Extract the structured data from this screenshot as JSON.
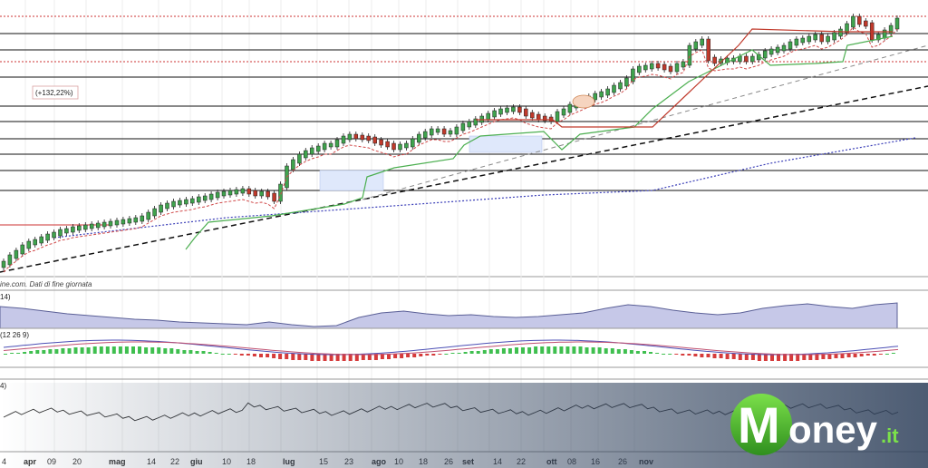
{
  "chart_data": {
    "type": "candlestick",
    "source_note": "ine.com. Dati di fine giornata",
    "performance_label": "(+132,22%)",
    "x_labels": [
      {
        "text": "4",
        "bold": false
      },
      {
        "text": "apr",
        "bold": true
      },
      {
        "text": "09",
        "bold": false
      },
      {
        "text": "20",
        "bold": false
      },
      {
        "text": "mag",
        "bold": true
      },
      {
        "text": "14",
        "bold": false
      },
      {
        "text": "22",
        "bold": false
      },
      {
        "text": "giu",
        "bold": true
      },
      {
        "text": "10",
        "bold": false
      },
      {
        "text": "18",
        "bold": false
      },
      {
        "text": "lug",
        "bold": true
      },
      {
        "text": "15",
        "bold": false
      },
      {
        "text": "23",
        "bold": false
      },
      {
        "text": "ago",
        "bold": true
      },
      {
        "text": "10",
        "bold": false
      },
      {
        "text": "18",
        "bold": false
      },
      {
        "text": "26",
        "bold": false
      },
      {
        "text": "set",
        "bold": true
      },
      {
        "text": "14",
        "bold": false
      },
      {
        "text": "22",
        "bold": false
      },
      {
        "text": "ott",
        "bold": true
      },
      {
        "text": "08",
        "bold": false
      },
      {
        "text": "16",
        "bold": false
      },
      {
        "text": "26",
        "bold": false
      },
      {
        "text": "nov",
        "bold": true
      }
    ],
    "panels": [
      {
        "name": "price",
        "label": ""
      },
      {
        "name": "indicator_1",
        "label": "14)"
      },
      {
        "name": "macd",
        "label": "(12 26 9)"
      },
      {
        "name": "oscillator",
        "label": "4)"
      }
    ],
    "price_series": {
      "close_path": [
        290,
        283,
        278,
        272,
        268,
        266,
        263,
        260,
        258,
        255,
        254,
        252,
        251,
        250,
        249,
        248,
        247,
        246,
        245,
        244,
        243,
        242,
        240,
        236,
        232,
        228,
        226,
        224,
        223,
        222,
        221,
        219,
        218,
        216,
        214,
        213,
        212,
        211,
        210,
        212,
        214,
        213,
        215,
        220,
        205,
        185,
        178,
        172,
        168,
        165,
        163,
        160,
        160,
        156,
        152,
        150,
        151,
        152,
        153,
        156,
        158,
        160,
        163,
        161,
        160,
        155,
        150,
        147,
        144,
        144,
        146,
        146,
        142,
        138,
        136,
        133,
        130,
        127,
        124,
        122,
        121,
        120,
        122,
        126,
        128,
        130,
        131,
        132,
        125,
        122,
        117,
        114,
        111,
        108,
        105,
        103,
        100,
        96,
        93,
        88,
        78,
        75,
        74,
        72,
        73,
        75,
        77,
        72,
        70,
        52,
        48,
        45,
        65,
        68,
        67,
        66,
        66,
        64,
        66,
        64,
        62,
        58,
        56,
        54,
        52,
        48,
        45,
        44,
        42,
        40,
        44,
        42,
        38,
        34,
        28,
        20,
        25,
        27,
        42,
        40,
        35,
        30,
        22
      ]
    },
    "horizontal_levels": {
      "solid": [
        37,
        55,
        85,
        117,
        134,
        153,
        170,
        188,
        210
      ],
      "dashed": [
        18,
        68
      ]
    },
    "watermark": {
      "brand_left": "M",
      "brand_right": "oney",
      ".it_suffix": ".it"
    }
  }
}
